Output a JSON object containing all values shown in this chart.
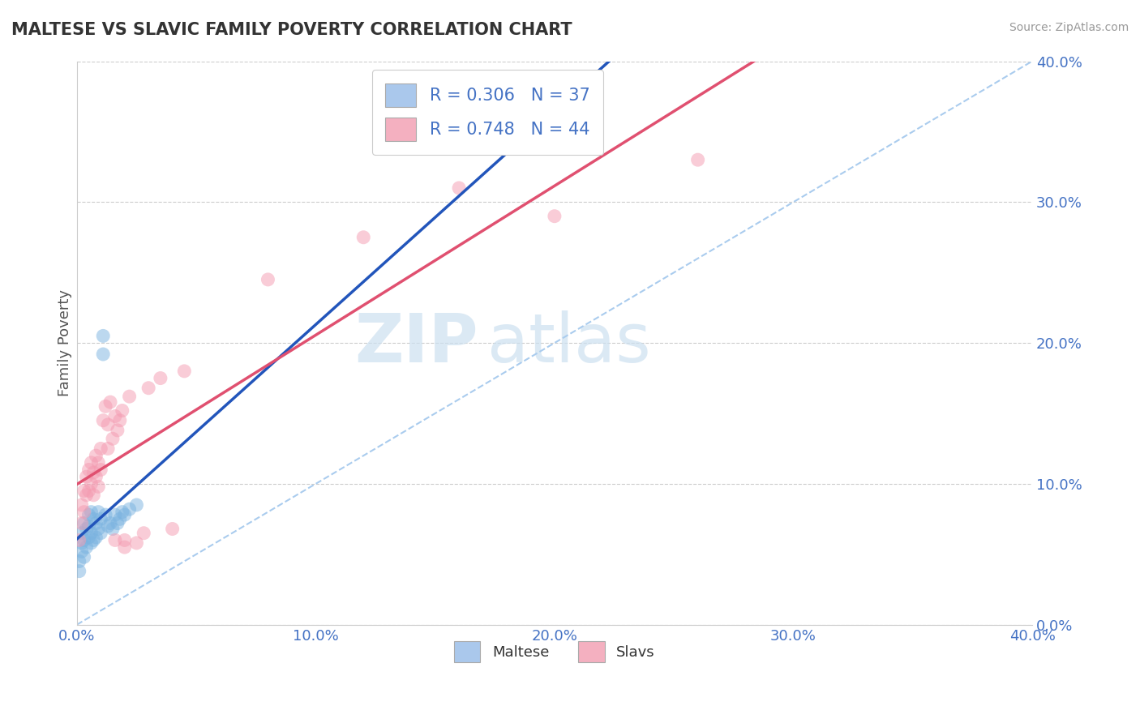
{
  "title": "MALTESE VS SLAVIC FAMILY POVERTY CORRELATION CHART",
  "source": "Source: ZipAtlas.com",
  "ylabel": "Family Poverty",
  "maltese_color": "#7ab3e0",
  "slavic_color": "#f49ab0",
  "maltese_line_color": "#2255bb",
  "slavic_line_color": "#e05070",
  "diag_line_color": "#aaccee",
  "watermark_color": "#cce0f0",
  "xlim": [
    0.0,
    0.4
  ],
  "ylim": [
    0.0,
    0.4
  ],
  "legend_items": [
    {
      "label": "R = 0.306   N = 37",
      "facecolor": "#aac8ec"
    },
    {
      "label": "R = 0.748   N = 44",
      "facecolor": "#f4b0c0"
    }
  ],
  "legend_bottom": [
    {
      "label": "Maltese",
      "facecolor": "#aac8ec"
    },
    {
      "label": "Slavs",
      "facecolor": "#f4b0c0"
    }
  ],
  "maltese_scatter": [
    [
      0.001,
      0.045
    ],
    [
      0.001,
      0.038
    ],
    [
      0.002,
      0.065
    ],
    [
      0.002,
      0.058
    ],
    [
      0.002,
      0.052
    ],
    [
      0.003,
      0.072
    ],
    [
      0.003,
      0.06
    ],
    [
      0.003,
      0.048
    ],
    [
      0.004,
      0.068
    ],
    [
      0.004,
      0.055
    ],
    [
      0.005,
      0.078
    ],
    [
      0.005,
      0.07
    ],
    [
      0.005,
      0.062
    ],
    [
      0.006,
      0.08
    ],
    [
      0.006,
      0.065
    ],
    [
      0.006,
      0.058
    ],
    [
      0.007,
      0.075
    ],
    [
      0.007,
      0.06
    ],
    [
      0.008,
      0.072
    ],
    [
      0.008,
      0.062
    ],
    [
      0.009,
      0.08
    ],
    [
      0.009,
      0.068
    ],
    [
      0.01,
      0.075
    ],
    [
      0.01,
      0.065
    ],
    [
      0.011,
      0.192
    ],
    [
      0.011,
      0.205
    ],
    [
      0.012,
      0.078
    ],
    [
      0.013,
      0.07
    ],
    [
      0.014,
      0.072
    ],
    [
      0.015,
      0.068
    ],
    [
      0.016,
      0.078
    ],
    [
      0.017,
      0.072
    ],
    [
      0.018,
      0.075
    ],
    [
      0.019,
      0.08
    ],
    [
      0.02,
      0.078
    ],
    [
      0.022,
      0.082
    ],
    [
      0.025,
      0.085
    ]
  ],
  "slavic_scatter": [
    [
      0.001,
      0.06
    ],
    [
      0.002,
      0.085
    ],
    [
      0.002,
      0.072
    ],
    [
      0.003,
      0.095
    ],
    [
      0.003,
      0.08
    ],
    [
      0.004,
      0.105
    ],
    [
      0.004,
      0.092
    ],
    [
      0.005,
      0.11
    ],
    [
      0.005,
      0.095
    ],
    [
      0.006,
      0.115
    ],
    [
      0.006,
      0.1
    ],
    [
      0.007,
      0.108
    ],
    [
      0.007,
      0.092
    ],
    [
      0.008,
      0.12
    ],
    [
      0.008,
      0.105
    ],
    [
      0.009,
      0.115
    ],
    [
      0.009,
      0.098
    ],
    [
      0.01,
      0.125
    ],
    [
      0.01,
      0.11
    ],
    [
      0.011,
      0.145
    ],
    [
      0.012,
      0.155
    ],
    [
      0.013,
      0.142
    ],
    [
      0.013,
      0.125
    ],
    [
      0.014,
      0.158
    ],
    [
      0.015,
      0.132
    ],
    [
      0.016,
      0.148
    ],
    [
      0.016,
      0.06
    ],
    [
      0.017,
      0.138
    ],
    [
      0.018,
      0.145
    ],
    [
      0.019,
      0.152
    ],
    [
      0.02,
      0.06
    ],
    [
      0.02,
      0.055
    ],
    [
      0.022,
      0.162
    ],
    [
      0.025,
      0.058
    ],
    [
      0.028,
      0.065
    ],
    [
      0.03,
      0.168
    ],
    [
      0.035,
      0.175
    ],
    [
      0.04,
      0.068
    ],
    [
      0.045,
      0.18
    ],
    [
      0.08,
      0.245
    ],
    [
      0.12,
      0.275
    ],
    [
      0.16,
      0.31
    ],
    [
      0.2,
      0.29
    ],
    [
      0.26,
      0.33
    ]
  ]
}
